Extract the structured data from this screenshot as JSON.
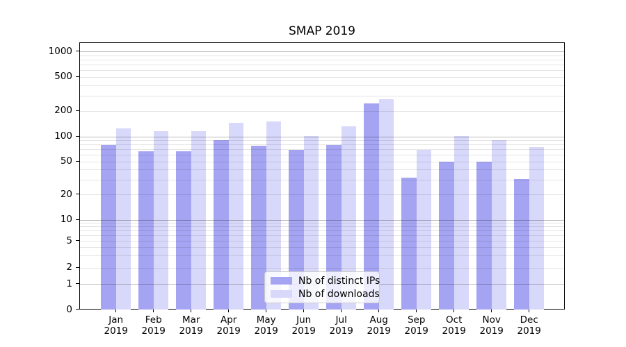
{
  "chart_data": {
    "type": "bar",
    "title": "SMAP 2019",
    "categories": [
      "Jan 2019",
      "Feb 2019",
      "Mar 2019",
      "Apr 2019",
      "May 2019",
      "Jun 2019",
      "Jul 2019",
      "Aug 2019",
      "Sep 2019",
      "Oct 2019",
      "Nov 2019",
      "Dec 2019"
    ],
    "series": [
      {
        "name": "Nb of distinct IPs",
        "color": "#a4a4f2",
        "values": [
          80,
          67,
          67,
          90,
          78,
          70,
          80,
          245,
          32,
          50,
          50,
          31
        ]
      },
      {
        "name": "Nb of downloads",
        "color": "#d8d8fa",
        "values": [
          125,
          117,
          116,
          145,
          152,
          102,
          133,
          275,
          70,
          101,
          91,
          75
        ]
      }
    ],
    "xlabel": "",
    "ylabel": "",
    "yscale": "symlog",
    "yticks": [
      0,
      1,
      2,
      5,
      10,
      20,
      50,
      100,
      200,
      500,
      1000
    ],
    "ylim": [
      0,
      1250
    ],
    "grid": {
      "axis": "y",
      "major": true,
      "minor": true
    },
    "legend_position": "lower center"
  }
}
